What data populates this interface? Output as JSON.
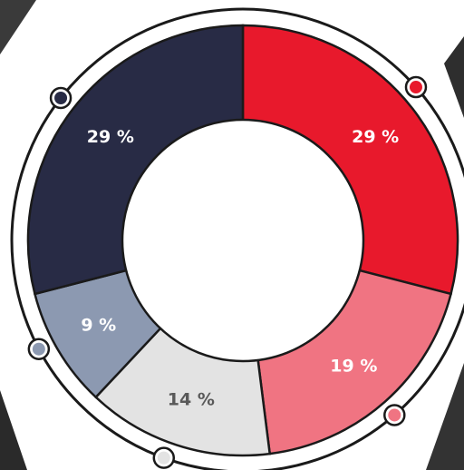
{
  "chart_data": {
    "type": "pie",
    "donut": true,
    "values": [
      29,
      19,
      14,
      9,
      29
    ],
    "value_labels": [
      "29 %",
      "19 %",
      "14 %",
      "9 %",
      "29 %"
    ],
    "colors": [
      "#e8192c",
      "#f07482",
      "#e3e3e3",
      "#8c99b1",
      "#282b45"
    ],
    "label_colors": [
      "#ffffff",
      "#ffffff",
      "#595959",
      "#ffffff",
      "#ffffff"
    ]
  }
}
